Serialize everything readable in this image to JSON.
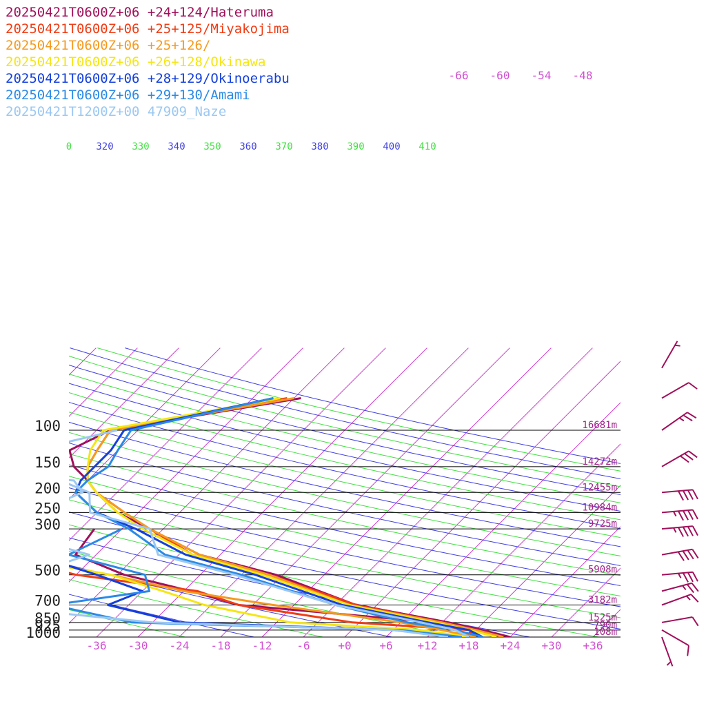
{
  "legend": [
    {
      "label": "20250421T0600Z+06 +24+124/Hateruma",
      "color": "#a0105a"
    },
    {
      "label": "20250421T0600Z+06 +25+125/Miyakojima",
      "color": "#f03c14"
    },
    {
      "label": "20250421T0600Z+06 +25+126/",
      "color": "#f59a1e"
    },
    {
      "label": "20250421T0600Z+06 +26+128/Okinawa",
      "color": "#f5e614"
    },
    {
      "label": "20250421T0600Z+06 +28+129/Okinoerabu",
      "color": "#1440dc"
    },
    {
      "label": "20250421T0600Z+06 +29+130/Amami",
      "color": "#2a8ae6"
    },
    {
      "label": "20250421T1200Z+00 47909_Naze",
      "color": "#9cc8f2"
    }
  ],
  "chart_data": {
    "type": "line",
    "diagram": "skew-T log-p",
    "pressure_levels": [
      {
        "p": 100,
        "label": "100",
        "height": "16681m"
      },
      {
        "p": 150,
        "label": "150",
        "height": "14272m"
      },
      {
        "p": 200,
        "label": "200",
        "height": "12455m"
      },
      {
        "p": 250,
        "label": "250",
        "height": "10984m"
      },
      {
        "p": 300,
        "label": "300",
        "height": "9725m"
      },
      {
        "p": 500,
        "label": "500",
        "height": "5908m"
      },
      {
        "p": 700,
        "label": "700",
        "height": "3182m"
      },
      {
        "p": 850,
        "label": "850",
        "height": "1525m"
      },
      {
        "p": 925,
        "label": "925",
        "height": "790m"
      },
      {
        "p": 1000,
        "label": "1000",
        "height": "108m"
      }
    ],
    "temperature_ticks": [
      "-36",
      "-30",
      "-24",
      "-18",
      "-12",
      "-6",
      "+0",
      "+6",
      "+12",
      "+18",
      "+24",
      "+30",
      "+36"
    ],
    "theta_labels": [
      {
        "t": "0",
        "c": "#40e040"
      },
      {
        "t": "320",
        "c": "#4040e0"
      },
      {
        "t": "330",
        "c": "#40e040"
      },
      {
        "t": "340",
        "c": "#4040e0"
      },
      {
        "t": "350",
        "c": "#40e040"
      },
      {
        "t": "360",
        "c": "#4040e0"
      },
      {
        "t": "370",
        "c": "#40e040"
      },
      {
        "t": "380",
        "c": "#4040e0"
      },
      {
        "t": "390",
        "c": "#40e040"
      },
      {
        "t": "400",
        "c": "#4040e0"
      },
      {
        "t": "410",
        "c": "#40e040"
      }
    ],
    "isotherm_labels": [
      "-66",
      "-60",
      "-54",
      "-48"
    ],
    "xlim": [
      -40,
      40
    ],
    "series": [
      {
        "name": "20250421T0600Z+06 +24+124/Hateruma",
        "color": "#a0105a",
        "temperature": [
          [
            -41,
            70
          ],
          [
            -64,
            100
          ],
          [
            -67,
            125
          ],
          [
            -64,
            150
          ],
          [
            -60,
            175
          ],
          [
            -57,
            200
          ],
          [
            -51,
            250
          ],
          [
            -44,
            300
          ],
          [
            -33,
            400
          ],
          [
            -19,
            500
          ],
          [
            -3,
            700
          ],
          [
            13,
            850
          ],
          [
            19,
            925
          ],
          [
            24,
            1000
          ]
        ],
        "dewpoint": [
          [
            -52,
            300
          ],
          [
            -51,
            400
          ],
          [
            -41,
            500
          ],
          [
            -29,
            600
          ],
          [
            -20,
            700
          ],
          [
            11,
            850
          ],
          [
            18,
            925
          ],
          [
            17,
            1000
          ]
        ]
      },
      {
        "name": "20250421T0600Z+06 +25+125/Miyakojima",
        "color": "#f03c14",
        "temperature": [
          [
            -43,
            70
          ],
          [
            -64,
            100
          ],
          [
            -63,
            125
          ],
          [
            -62,
            150
          ],
          [
            -60,
            175
          ],
          [
            -57,
            200
          ],
          [
            -50,
            250
          ],
          [
            -44,
            300
          ],
          [
            -34,
            400
          ],
          [
            -20,
            500
          ],
          [
            -3,
            700
          ],
          [
            12,
            850
          ],
          [
            18,
            925
          ],
          [
            23,
            1000
          ]
        ],
        "dewpoint": [
          [
            -64,
            300
          ],
          [
            -62,
            400
          ],
          [
            -48,
            500
          ],
          [
            -28,
            600
          ],
          [
            -20,
            700
          ],
          [
            -1,
            850
          ],
          [
            17,
            925
          ],
          [
            19,
            1000
          ]
        ]
      },
      {
        "name": "20250421T0600Z+06 +25+126/",
        "color": "#f59a1e",
        "temperature": [
          [
            -42,
            70
          ],
          [
            -64,
            100
          ],
          [
            -63,
            125
          ],
          [
            -62,
            150
          ],
          [
            -60,
            175
          ],
          [
            -57,
            200
          ],
          [
            -50,
            250
          ],
          [
            -44,
            300
          ],
          [
            -33,
            400
          ],
          [
            -20,
            500
          ],
          [
            -4,
            700
          ],
          [
            12,
            850
          ],
          [
            18,
            925
          ],
          [
            23,
            1000
          ]
        ],
        "dewpoint": [
          [
            -67,
            300
          ],
          [
            -62,
            400
          ],
          [
            -43,
            500
          ],
          [
            -30,
            600
          ],
          [
            -15,
            700
          ],
          [
            6,
            850
          ],
          [
            13,
            925
          ],
          [
            19,
            1000
          ]
        ]
      },
      {
        "name": "20250421T0600Z+06 +26+128/Okinawa",
        "color": "#f5e614",
        "temperature": [
          [
            -44,
            70
          ],
          [
            -65,
            100
          ],
          [
            -64,
            125
          ],
          [
            -62,
            150
          ],
          [
            -60,
            175
          ],
          [
            -57,
            200
          ],
          [
            -51,
            250
          ],
          [
            -45,
            300
          ],
          [
            -34,
            400
          ],
          [
            -21,
            500
          ],
          [
            -4,
            700
          ],
          [
            11,
            850
          ],
          [
            17,
            925
          ],
          [
            22,
            1000
          ]
        ],
        "dewpoint": [
          [
            -59,
            300
          ],
          [
            -62,
            400
          ],
          [
            -43,
            500
          ],
          [
            -33,
            600
          ],
          [
            -25,
            700
          ],
          [
            -10,
            850
          ],
          [
            10,
            925
          ],
          [
            18,
            1000
          ]
        ]
      },
      {
        "name": "20250421T0600Z+06 +28+129/Okinoerabu",
        "color": "#1440dc",
        "temperature": [
          [
            -45,
            70
          ],
          [
            -62,
            100
          ],
          [
            -61,
            125
          ],
          [
            -61,
            150
          ],
          [
            -61,
            175
          ],
          [
            -60,
            200
          ],
          [
            -54,
            250
          ],
          [
            -46,
            300
          ],
          [
            -35,
            400
          ],
          [
            -22,
            500
          ],
          [
            -5,
            700
          ],
          [
            10,
            850
          ],
          [
            17,
            925
          ],
          [
            20,
            1000
          ]
        ],
        "dewpoint": [
          [
            -56,
            300
          ],
          [
            -57,
            400
          ],
          [
            -45,
            500
          ],
          [
            -36,
            600
          ],
          [
            -39,
            700
          ],
          [
            -26,
            850
          ],
          [
            6,
            925
          ],
          [
            16,
            1000
          ]
        ]
      },
      {
        "name": "20250421T0600Z+06 +29+130/Amami",
        "color": "#2a8ae6",
        "temperature": [
          [
            -45,
            70
          ],
          [
            -61,
            100
          ],
          [
            -60,
            125
          ],
          [
            -59,
            150
          ],
          [
            -60,
            175
          ],
          [
            -60,
            200
          ],
          [
            -54,
            250
          ],
          [
            -47,
            300
          ],
          [
            -38,
            400
          ],
          [
            -24,
            500
          ],
          [
            -6,
            700
          ],
          [
            7,
            850
          ],
          [
            15,
            925
          ],
          [
            20,
            1000
          ]
        ],
        "dewpoint": [
          [
            -48,
            300
          ],
          [
            -52,
            400
          ],
          [
            -38,
            500
          ],
          [
            -35,
            600
          ],
          [
            -47,
            700
          ],
          [
            -33,
            850
          ],
          [
            7,
            925
          ],
          [
            17,
            1000
          ]
        ]
      },
      {
        "name": "20250421T1200Z+00 47909_Naze",
        "color": "#9cc8f2",
        "temperature": [
          [
            -63,
            100
          ],
          [
            -80,
            150
          ],
          [
            -64,
            175
          ],
          [
            -58,
            200
          ],
          [
            -55,
            250
          ],
          [
            -44,
            300
          ],
          [
            -39,
            400
          ],
          [
            -25,
            500
          ],
          [
            -6,
            700
          ],
          [
            9,
            850
          ],
          [
            15,
            925
          ],
          [
            18,
            1000
          ]
        ],
        "dewpoint": [
          [
            -74,
            100
          ],
          [
            -90,
            150
          ],
          [
            -62,
            175
          ],
          [
            -59,
            200
          ],
          [
            -63,
            250
          ],
          [
            -66,
            300
          ],
          [
            -49,
            400
          ],
          [
            -55,
            500
          ],
          [
            -58,
            700
          ],
          [
            -30,
            850
          ],
          [
            6,
            925
          ],
          [
            15,
            1000
          ]
        ]
      }
    ],
    "wind_barbs": [
      {
        "p": 1000,
        "dir": 340,
        "kt": 5
      },
      {
        "p": 925,
        "dir": 300,
        "kt": 10
      },
      {
        "p": 850,
        "dir": 260,
        "kt": 10
      },
      {
        "p": 700,
        "dir": 250,
        "kt": 15
      },
      {
        "p": 600,
        "dir": 255,
        "kt": 25
      },
      {
        "p": 500,
        "dir": 265,
        "kt": 35
      },
      {
        "p": 400,
        "dir": 260,
        "kt": 40
      },
      {
        "p": 300,
        "dir": 265,
        "kt": 45
      },
      {
        "p": 250,
        "dir": 265,
        "kt": 45
      },
      {
        "p": 200,
        "dir": 265,
        "kt": 40
      },
      {
        "p": 150,
        "dir": 240,
        "kt": 30
      },
      {
        "p": 100,
        "dir": 235,
        "kt": 25
      },
      {
        "p": 70,
        "dir": 240,
        "kt": 10
      },
      {
        "p": 50,
        "dir": 210,
        "kt": 5
      }
    ]
  }
}
